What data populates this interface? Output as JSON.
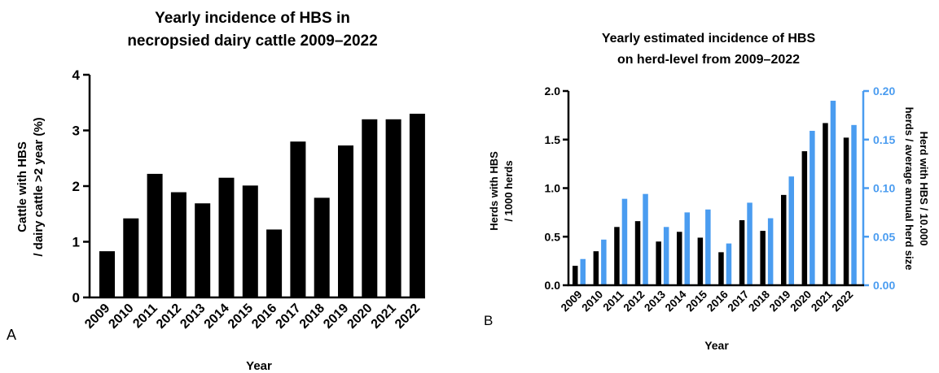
{
  "chart_data": [
    {
      "panel_label": "A",
      "type": "bar",
      "title": [
        "Yearly incidence of HBS in",
        "necropsied dairy cattle 2009–2022"
      ],
      "xlabel": "Year",
      "ylabel": [
        "Cattle with  HBS",
        "/ dairy cattle >2 year (%)"
      ],
      "ylim": [
        0,
        4
      ],
      "yticks": [
        "0",
        "1",
        "2",
        "3",
        "4"
      ],
      "categories": [
        "2009",
        "2010",
        "2011",
        "2012",
        "2013",
        "2014",
        "2015",
        "2016",
        "2017",
        "2018",
        "2019",
        "2020",
        "2021",
        "2022"
      ],
      "values": [
        0.83,
        1.42,
        2.22,
        1.89,
        1.69,
        2.15,
        2.01,
        1.22,
        2.8,
        1.79,
        2.73,
        3.2,
        3.2,
        3.3
      ],
      "bar_color": "#000000",
      "grid": false
    },
    {
      "panel_label": "B",
      "type": "bar",
      "title": [
        "Yearly estimated incidence of HBS",
        "on herd-level from 2009–2022"
      ],
      "xlabel": "Year",
      "ylabel_left": [
        "Herds with HBS",
        "/ 1000 herds"
      ],
      "ylabel_right": [
        "Herd with HBS / 10.000",
        "herds / average annual herd size"
      ],
      "ylim_left": [
        0,
        2.0
      ],
      "ylim_right": [
        0,
        0.2
      ],
      "yticks_left": [
        "0.0",
        "0.5",
        "1.0",
        "1.5",
        "2.0"
      ],
      "yticks_right": [
        "0.00",
        "0.05",
        "0.10",
        "0.15",
        "0.20"
      ],
      "right_axis_color": "#4a9cf0",
      "categories": [
        "2009",
        "2010",
        "2011",
        "2012",
        "2013",
        "2014",
        "2015",
        "2016",
        "2017",
        "2018",
        "2019",
        "2020",
        "2021",
        "2022"
      ],
      "series": [
        {
          "axis": "left",
          "color": "#000000",
          "values": [
            0.2,
            0.35,
            0.6,
            0.66,
            0.45,
            0.55,
            0.49,
            0.34,
            0.67,
            0.56,
            0.93,
            1.38,
            1.67,
            1.52
          ]
        },
        {
          "axis": "right",
          "color": "#4a9cf0",
          "values": [
            0.027,
            0.047,
            0.089,
            0.094,
            0.06,
            0.075,
            0.078,
            0.043,
            0.085,
            0.069,
            0.112,
            0.159,
            0.19,
            0.165
          ]
        }
      ],
      "grid": false
    }
  ]
}
